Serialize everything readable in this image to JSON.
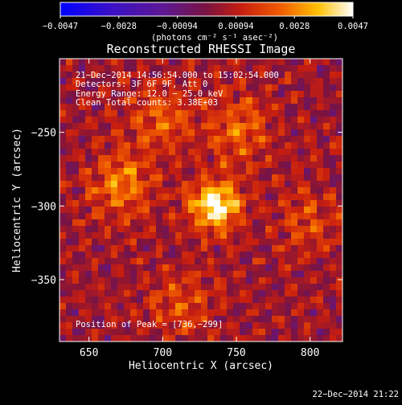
{
  "chart_data": {
    "type": "heatmap",
    "title": "Reconstructed RHESSI Image",
    "xlabel": "Heliocentric X (arcsec)",
    "ylabel": "Heliocentric Y (arcsec)",
    "xlim": [
      630,
      822
    ],
    "ylim": [
      -392,
      -200
    ],
    "x_ticks": [
      650,
      700,
      750,
      800
    ],
    "y_ticks": [
      -250,
      -300,
      -350
    ],
    "x_tick_labels": [
      "650",
      "700",
      "750",
      "800"
    ],
    "y_tick_labels": [
      "−250",
      "−300",
      "−350"
    ],
    "colorbar": {
      "min": -0.0047,
      "max": 0.0047,
      "tick_labels": [
        "−0.0047",
        "−0.0028",
        "−0.00094",
        "0.00094",
        "0.0028",
        "0.0047"
      ],
      "unit_label": "(photons cm⁻² s⁻¹ asec⁻²)",
      "colormap": "blue-purple-red-orange-yellow-white"
    },
    "peak": {
      "x": 736,
      "y": -299,
      "value": 0.0047
    },
    "secondary_sources": [
      {
        "x": 672,
        "y": -285,
        "value": 0.003
      },
      {
        "x": 752,
        "y": -248,
        "value": 0.0026
      },
      {
        "x": 700,
        "y": -240,
        "value": 0.0022
      },
      {
        "x": 712,
        "y": -365,
        "value": 0.002
      },
      {
        "x": 800,
        "y": -310,
        "value": 0.0018
      }
    ],
    "grid": false
  },
  "annotations": {
    "time_range": "21−Dec−2014 14:56:54.000 to 15:02:54.000",
    "detectors": "Detectors: 3F 6F 9F, Att 0",
    "energy": "Energy Range: 12.0 − 25.0 keV",
    "method": "Clean    Total counts: 3.38E+03",
    "peak_position": "Position of Peak = [736,−299]"
  },
  "footer": {
    "timestamp": "22−Dec−2014 21:22"
  }
}
